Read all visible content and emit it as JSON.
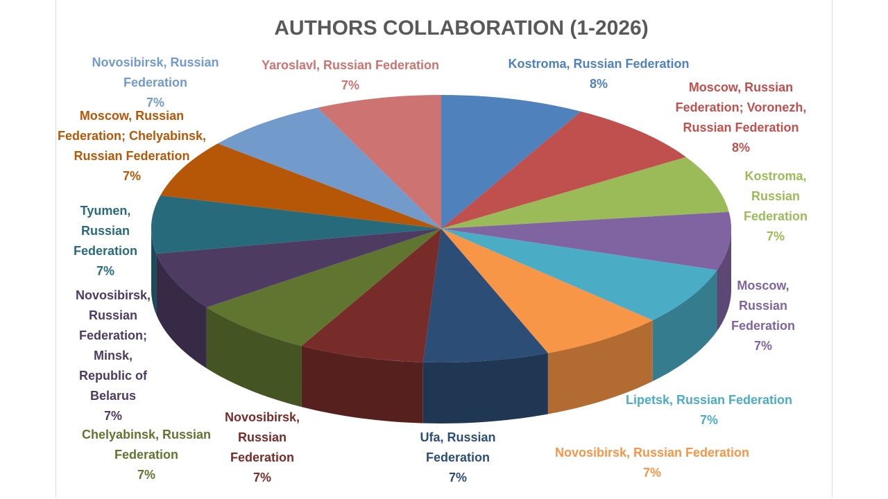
{
  "chart_data": {
    "type": "pie",
    "title": "AUTHORS COLLABORATION  (1-2026)",
    "categories": [
      "Kostroma, Russian Federation",
      "Moscow, Russian Federation; Voronezh, Russian Federation",
      "Kostroma, Russian Federation",
      "Moscow, Russian Federation",
      "Lipetsk, Russian Federation",
      "Novosibirsk, Russian Federation",
      "Ufa, Russian Federation",
      "Novosibirsk, Russian Federation",
      "Chelyabinsk, Russian Federation",
      "Novosibirsk, Russian Federation; Minsk, Republic of Belarus",
      "Tyumen, Russian Federation",
      "Moscow, Russian Federation; Chelyabinsk, Russian Federation",
      "Novosibirsk, Russian Federation",
      "Yaroslavl, Russian Federation"
    ],
    "values": [
      8,
      8,
      7,
      7,
      7,
      7,
      7,
      7,
      7,
      7,
      7,
      7,
      7,
      7
    ],
    "value_labels": [
      "8%",
      "8%",
      "7%",
      "7%",
      "7%",
      "7%",
      "7%",
      "7%",
      "7%",
      "7%",
      "7%",
      "7%",
      "7%",
      "7%"
    ],
    "colors": [
      "#4f81bd",
      "#c0504d",
      "#9bbb59",
      "#8064a2",
      "#4bacc6",
      "#f79646",
      "#2c4d75",
      "#772c2a",
      "#5f7530",
      "#4d3b62",
      "#276a7c",
      "#b65708",
      "#729aca",
      "#cd7371"
    ]
  }
}
